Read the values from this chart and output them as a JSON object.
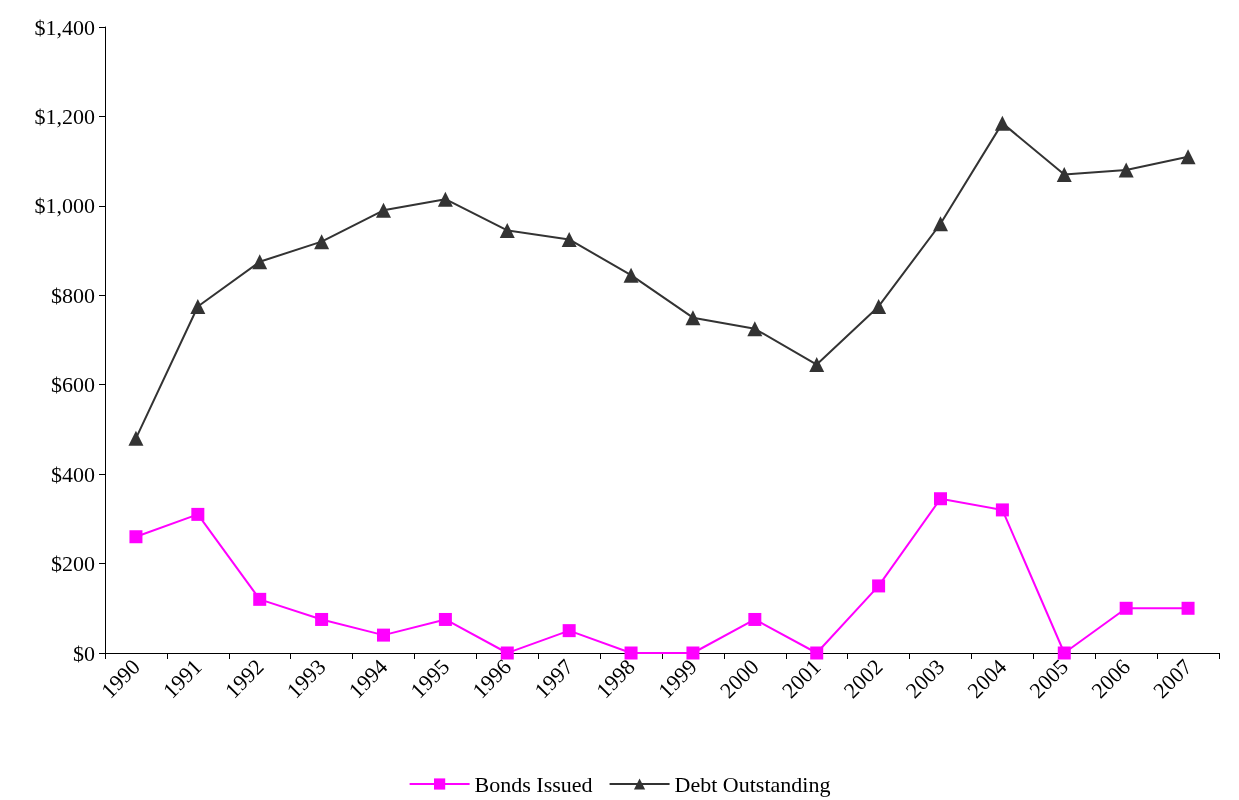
{
  "chart_data": {
    "type": "line",
    "categories": [
      "1990",
      "1991",
      "1992",
      "1993",
      "1994",
      "1995",
      "1996",
      "1997",
      "1998",
      "1999",
      "2000",
      "2001",
      "2002",
      "2003",
      "2004",
      "2005",
      "2006",
      "2007"
    ],
    "series": [
      {
        "name": "Bonds Issued",
        "color": "#ff00ff",
        "marker": "square",
        "values": [
          260,
          310,
          120,
          75,
          40,
          75,
          0,
          50,
          0,
          0,
          75,
          0,
          150,
          345,
          320,
          0,
          100,
          100
        ]
      },
      {
        "name": "Debt Outstanding",
        "color": "#333333",
        "marker": "triangle",
        "values": [
          480,
          775,
          875,
          920,
          990,
          1015,
          945,
          925,
          845,
          750,
          725,
          645,
          775,
          960,
          1185,
          1070,
          1080,
          1110
        ]
      }
    ],
    "ylim": [
      0,
      1400
    ],
    "yticks": [
      {
        "value": 0,
        "label": "$0"
      },
      {
        "value": 200,
        "label": "$200"
      },
      {
        "value": 400,
        "label": "$400"
      },
      {
        "value": 600,
        "label": "$600"
      },
      {
        "value": 800,
        "label": "$800"
      },
      {
        "value": 1000,
        "label": "$1,000"
      },
      {
        "value": 1200,
        "label": "$1,200"
      },
      {
        "value": 1400,
        "label": "$1,400"
      }
    ],
    "grid": false,
    "legend": "bottom",
    "line_style": "solid"
  }
}
